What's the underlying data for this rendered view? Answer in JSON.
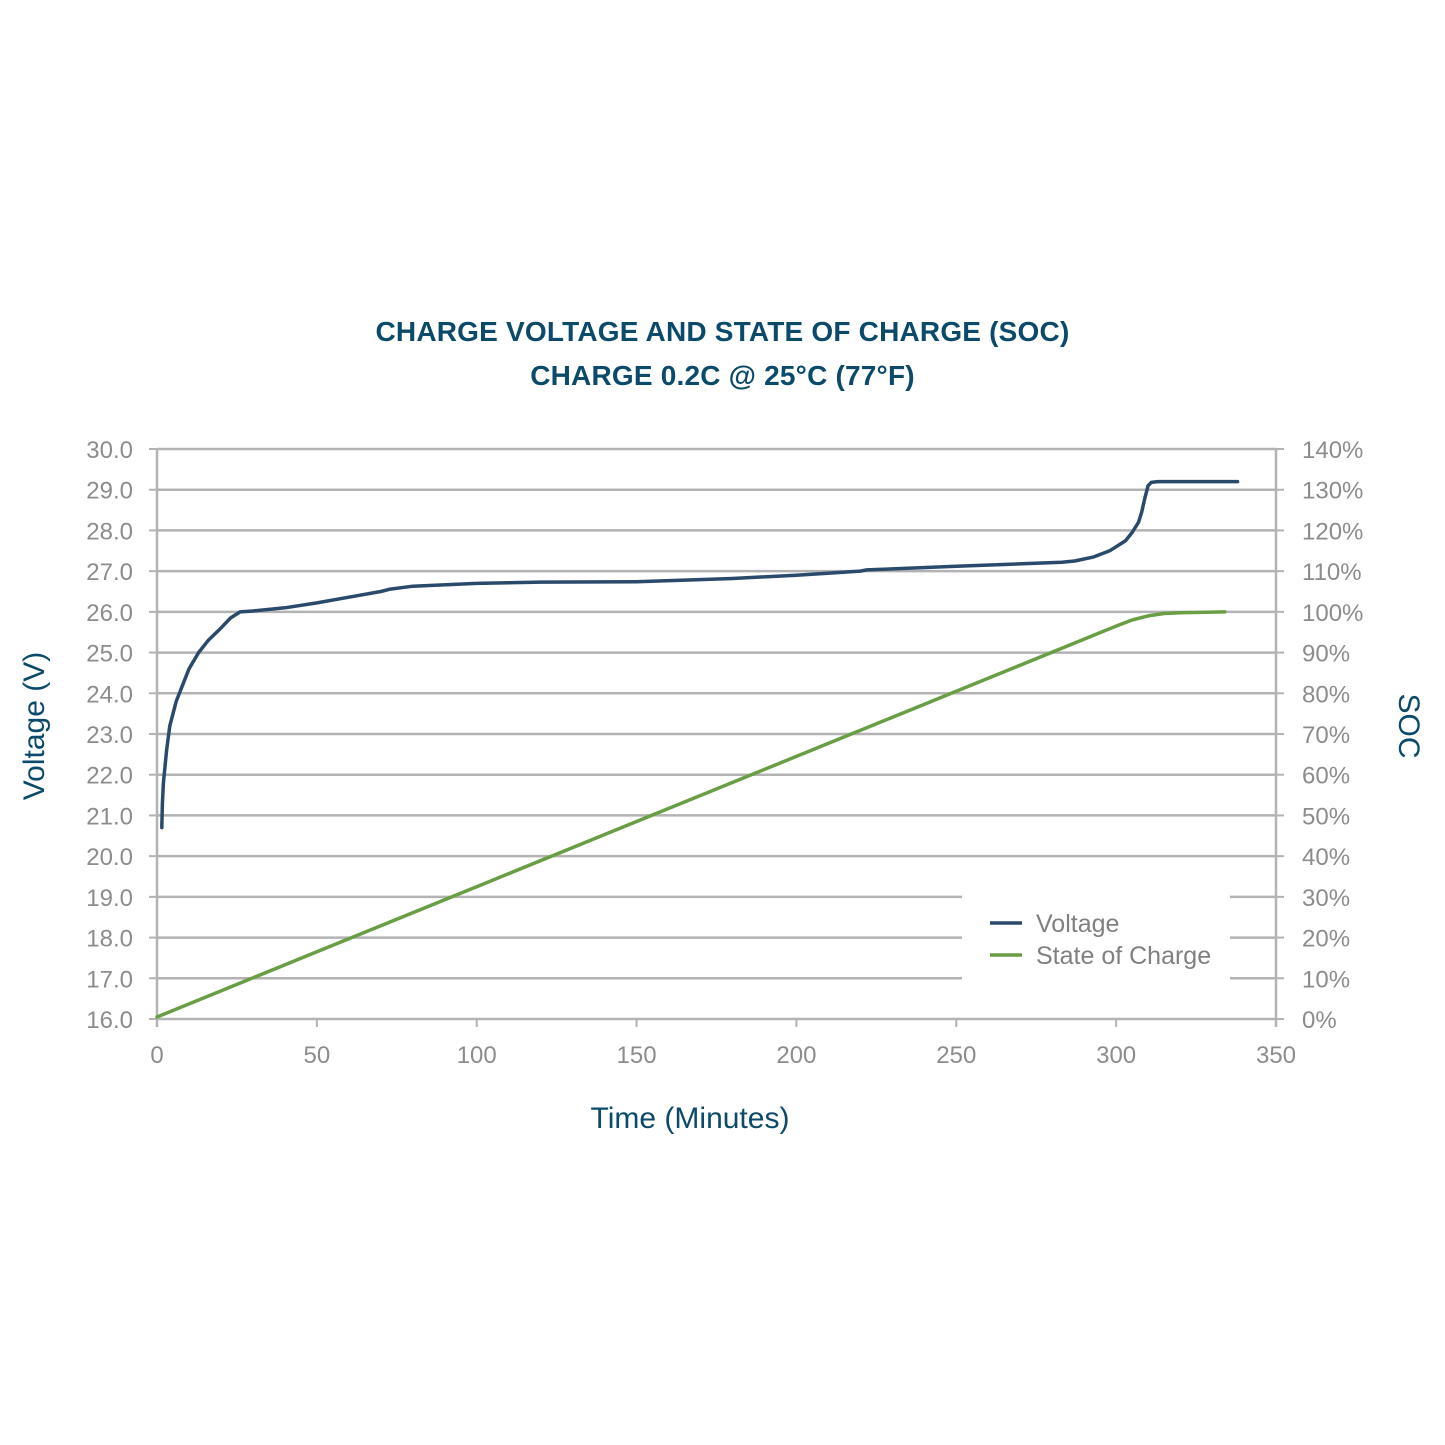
{
  "chart_data": {
    "type": "line",
    "title": "CHARGE VOLTAGE AND STATE OF CHARGE (SOC)",
    "subtitle": "CHARGE 0.2C @ 25°C (77°F)",
    "xlabel": "Time (Minutes)",
    "ylabel_left": "Voltage (V)",
    "ylabel_right": "SOC",
    "xlim": [
      0,
      350
    ],
    "ylim_left": [
      16,
      30
    ],
    "ylim_right": [
      0,
      140
    ],
    "grid": true,
    "legend_position": "bottom-right",
    "x_ticks": [
      "0",
      "50",
      "100",
      "150",
      "200",
      "250",
      "300",
      "350"
    ],
    "y_left_ticks": [
      "16.0",
      "17.0",
      "18.0",
      "19.0",
      "20.0",
      "21.0",
      "22.0",
      "23.0",
      "24.0",
      "25.0",
      "26.0",
      "27.0",
      "28.0",
      "29.0",
      "30.0"
    ],
    "y_right_ticks": [
      "0%",
      "10%",
      "20%",
      "30%",
      "40%",
      "50%",
      "60%",
      "70%",
      "80%",
      "90%",
      "100%",
      "110%",
      "120%",
      "130%",
      "140%"
    ],
    "series": [
      {
        "name": "Voltage",
        "axis": "left",
        "color": "#2a4a6b",
        "x": [
          1.5,
          1.7,
          2,
          3,
          4,
          6,
          8,
          10,
          13,
          16,
          20,
          23,
          26,
          30,
          40,
          50,
          60,
          70,
          73,
          80,
          100,
          120,
          150,
          180,
          200,
          220,
          222,
          250,
          283,
          287,
          293,
          298,
          303,
          305,
          307,
          308,
          309,
          310,
          311,
          313,
          320,
          338
        ],
        "y": [
          20.7,
          21.3,
          21.8,
          22.6,
          23.2,
          23.8,
          24.2,
          24.6,
          25.0,
          25.3,
          25.6,
          25.85,
          26.0,
          26.02,
          26.1,
          26.22,
          26.36,
          26.5,
          26.56,
          26.63,
          26.7,
          26.73,
          26.74,
          26.82,
          26.9,
          27.0,
          27.03,
          27.12,
          27.22,
          27.25,
          27.35,
          27.5,
          27.75,
          27.95,
          28.2,
          28.45,
          28.8,
          29.1,
          29.18,
          29.2,
          29.2,
          29.2
        ]
      },
      {
        "name": "State of Charge",
        "axis": "right",
        "color": "#6a9e45",
        "x": [
          0,
          50,
          100,
          150,
          200,
          250,
          300,
          305,
          310,
          315,
          320,
          334
        ],
        "y": [
          0.5,
          16.5,
          32.5,
          48.5,
          64.5,
          80.5,
          96.5,
          98,
          99,
          99.6,
          99.8,
          100
        ]
      }
    ]
  }
}
